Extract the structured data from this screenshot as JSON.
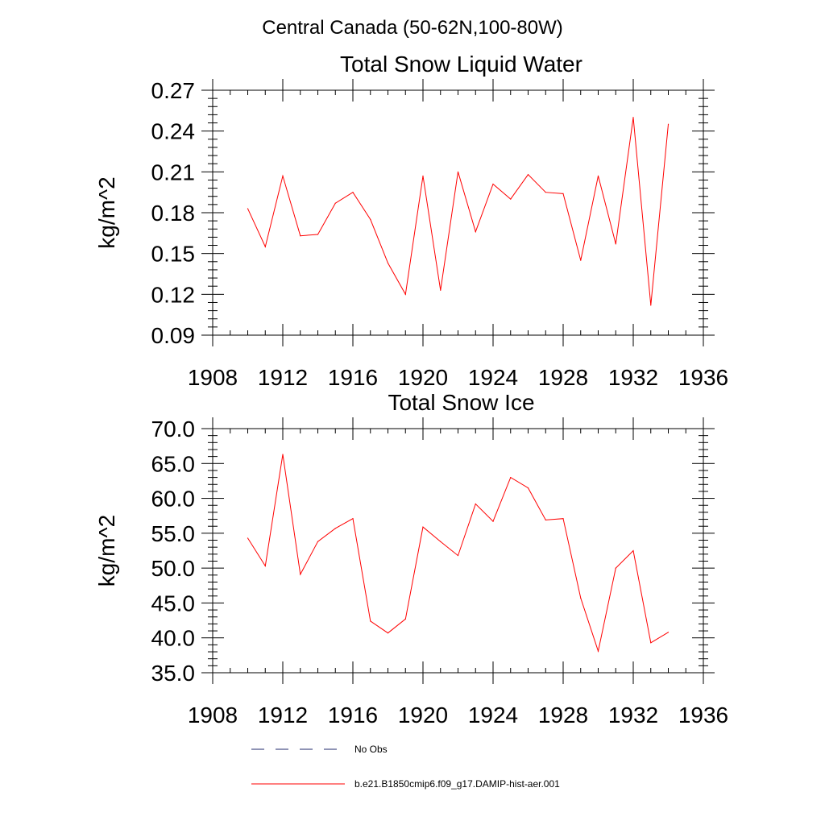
{
  "figure_title": "Central Canada (50-62N,100-80W)",
  "legend": {
    "items": [
      {
        "label": "No Obs",
        "color": "#1f2a6b",
        "dash": true
      },
      {
        "label": "b.e21.B1850cmip6.f09_g17.DAMIP-hist-aer.001",
        "color": "#ff0000",
        "dash": false
      }
    ]
  },
  "chart_data": [
    {
      "type": "line",
      "title": "Total Snow Liquid Water",
      "xlabel": "",
      "ylabel": "kg/m^2",
      "xlim": [
        1908,
        1936
      ],
      "ylim": [
        0.09,
        0.27
      ],
      "xticks": [
        1908,
        1912,
        1916,
        1920,
        1924,
        1928,
        1932,
        1936
      ],
      "xtick_labels": [
        "1908",
        "1912",
        "1916",
        "1920",
        "1924",
        "1928",
        "1932",
        "1936"
      ],
      "yticks": [
        0.09,
        0.12,
        0.15,
        0.18,
        0.21,
        0.24,
        0.27
      ],
      "ytick_labels": [
        "0.09",
        "0.12",
        "0.15",
        "0.18",
        "0.21",
        "0.24",
        "0.27"
      ],
      "grid": false,
      "series": [
        {
          "name": "b.e21.B1850cmip6.f09_g17.DAMIP-hist-aer.001",
          "color": "#ff0000",
          "x": [
            1910,
            1911,
            1912,
            1913,
            1914,
            1915,
            1916,
            1917,
            1918,
            1919,
            1920,
            1921,
            1922,
            1923,
            1924,
            1925,
            1926,
            1927,
            1928,
            1929,
            1930,
            1931,
            1932,
            1933,
            1934
          ],
          "y": [
            0.183,
            0.155,
            0.207,
            0.163,
            0.164,
            0.187,
            0.195,
            0.175,
            0.143,
            0.12,
            0.207,
            0.123,
            0.21,
            0.166,
            0.201,
            0.19,
            0.208,
            0.195,
            0.194,
            0.145,
            0.207,
            0.157,
            0.25,
            0.112,
            0.245
          ]
        }
      ]
    },
    {
      "type": "line",
      "title": "Total Snow Ice",
      "xlabel": "",
      "ylabel": "kg/m^2",
      "xlim": [
        1908,
        1936
      ],
      "ylim": [
        35,
        70
      ],
      "xticks": [
        1908,
        1912,
        1916,
        1920,
        1924,
        1928,
        1932,
        1936
      ],
      "xtick_labels": [
        "1908",
        "1912",
        "1916",
        "1920",
        "1924",
        "1928",
        "1932",
        "1936"
      ],
      "yticks": [
        35,
        40,
        45,
        50,
        55,
        60,
        65,
        70
      ],
      "ytick_labels": [
        "35.0",
        "40.0",
        "45.0",
        "50.0",
        "55.0",
        "60.0",
        "65.0",
        "70.0"
      ],
      "grid": false,
      "series": [
        {
          "name": "b.e21.B1850cmip6.f09_g17.DAMIP-hist-aer.001",
          "color": "#ff0000",
          "x": [
            1910,
            1911,
            1912,
            1913,
            1914,
            1915,
            1916,
            1917,
            1918,
            1919,
            1920,
            1921,
            1922,
            1923,
            1924,
            1925,
            1926,
            1927,
            1928,
            1929,
            1930,
            1931,
            1932,
            1933,
            1934
          ],
          "y": [
            54.3,
            50.3,
            66.3,
            49.1,
            53.8,
            55.7,
            57.1,
            42.4,
            40.7,
            42.7,
            55.9,
            53.8,
            51.8,
            59.2,
            56.7,
            63.0,
            61.5,
            56.9,
            57.1,
            45.7,
            38.1,
            50.0,
            52.5,
            39.3,
            40.8
          ]
        }
      ]
    }
  ]
}
